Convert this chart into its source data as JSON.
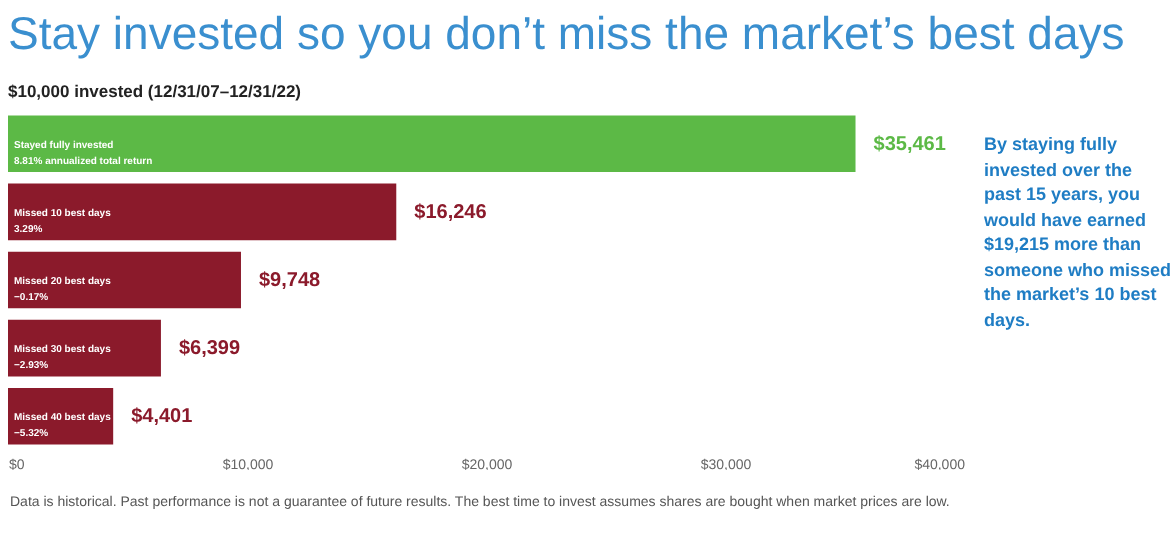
{
  "chart_data": {
    "type": "bar",
    "orientation": "horizontal",
    "title": "Stay invested so you don’t miss the market’s best days",
    "subtitle": "$10,000 invested (12/31/07–12/31/22)",
    "categories": [
      "Stayed fully invested\n8.81% annualized total return",
      "Missed 10 best days\n3.29%",
      "Missed 20 best days\n−0.17%",
      "Missed 30 best days\n−2.93%",
      "Missed 40 best days\n−5.32%"
    ],
    "values": [
      35461,
      16246,
      9748,
      6399,
      4401
    ],
    "colors": [
      "#5cb946",
      "#8b1a2b",
      "#8b1a2b",
      "#8b1a2b",
      "#8b1a2b"
    ],
    "value_labels": [
      "$35,461",
      "$16,246",
      "$9,748",
      "$6,399",
      "$4,401"
    ],
    "xlim": [
      0,
      40000
    ],
    "xticks": [
      {
        "value": 0,
        "label": "$0"
      },
      {
        "value": 10000,
        "label": "$10,000"
      },
      {
        "value": 20000,
        "label": "$20,000"
      },
      {
        "value": 30000,
        "label": "$30,000"
      },
      {
        "value": 40000,
        "label": "$40,000"
      }
    ],
    "tick_labels": "x",
    "grid": false,
    "annotations": [
      "By staying fully invested over the past 15 years, you would have earned $19,215 more than someone who missed the market’s 10 best days.",
      "Data is historical. Past performance is not a guarantee of future results. The best time to invest assumes shares are bought when market prices are low."
    ]
  }
}
